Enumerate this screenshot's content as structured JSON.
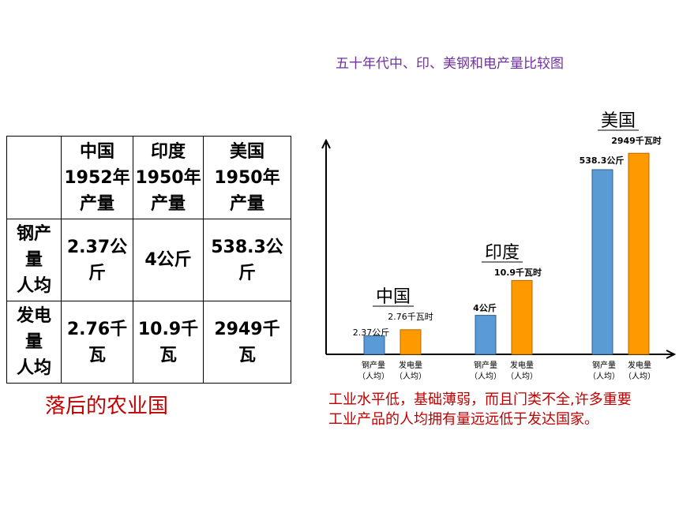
{
  "title": "五十年代中、印、美钢和电产量比较图",
  "table": {
    "columns": [
      {
        "country": "中国",
        "year": "1952年",
        "kind": "产量"
      },
      {
        "country": "印度",
        "year": "1950年",
        "kind": "产量"
      },
      {
        "country": "美国",
        "year": "1950年",
        "kind": "产量"
      }
    ],
    "rows": [
      {
        "label": [
          "钢产",
          "量",
          "人均"
        ],
        "cells": [
          [
            "2.37公",
            "斤"
          ],
          [
            "4公斤"
          ],
          [
            "538.3公",
            "斤"
          ]
        ]
      },
      {
        "label": [
          "发电",
          "量",
          "人均"
        ],
        "cells": [
          [
            "2.76千",
            "瓦"
          ],
          [
            "10.9千",
            "瓦"
          ],
          [
            "2949千",
            "瓦"
          ]
        ]
      }
    ]
  },
  "left_note": "落后的农业国",
  "right_note": "工业水平低，基础薄弱，而且门类不全,许多重要工业产品的人均拥有量远远低于发达国家。",
  "colors": {
    "steel": "#5b9bd5",
    "power": "#ff9900",
    "title": "#7030a0",
    "note": "#c00000"
  },
  "chart_data": {
    "type": "bar",
    "title": "五十年代中、印、美钢和电产量比较图",
    "categories": [
      "中国",
      "印度",
      "美国"
    ],
    "series": [
      {
        "name": "钢产量（人均）",
        "values": [
          2.37,
          4,
          538.3
        ]
      },
      {
        "name": "发电量（人均）",
        "values": [
          2.76,
          10.9,
          2949
        ]
      }
    ],
    "bar_labels": {
      "steel": [
        "2.37公斤",
        "4公斤",
        "538.3公斤"
      ],
      "power": [
        "2.76千瓦时",
        "10.9千瓦时",
        "2949千瓦时"
      ]
    },
    "x_tick_labels": [
      "钢产量",
      "（人均）",
      "发电量",
      "（人均）"
    ],
    "visual_heights": {
      "steel": [
        0.09,
        0.19,
        0.9
      ],
      "power": [
        0.12,
        0.36,
        0.98
      ]
    },
    "note": "bars are schematic, not to linear scale"
  }
}
